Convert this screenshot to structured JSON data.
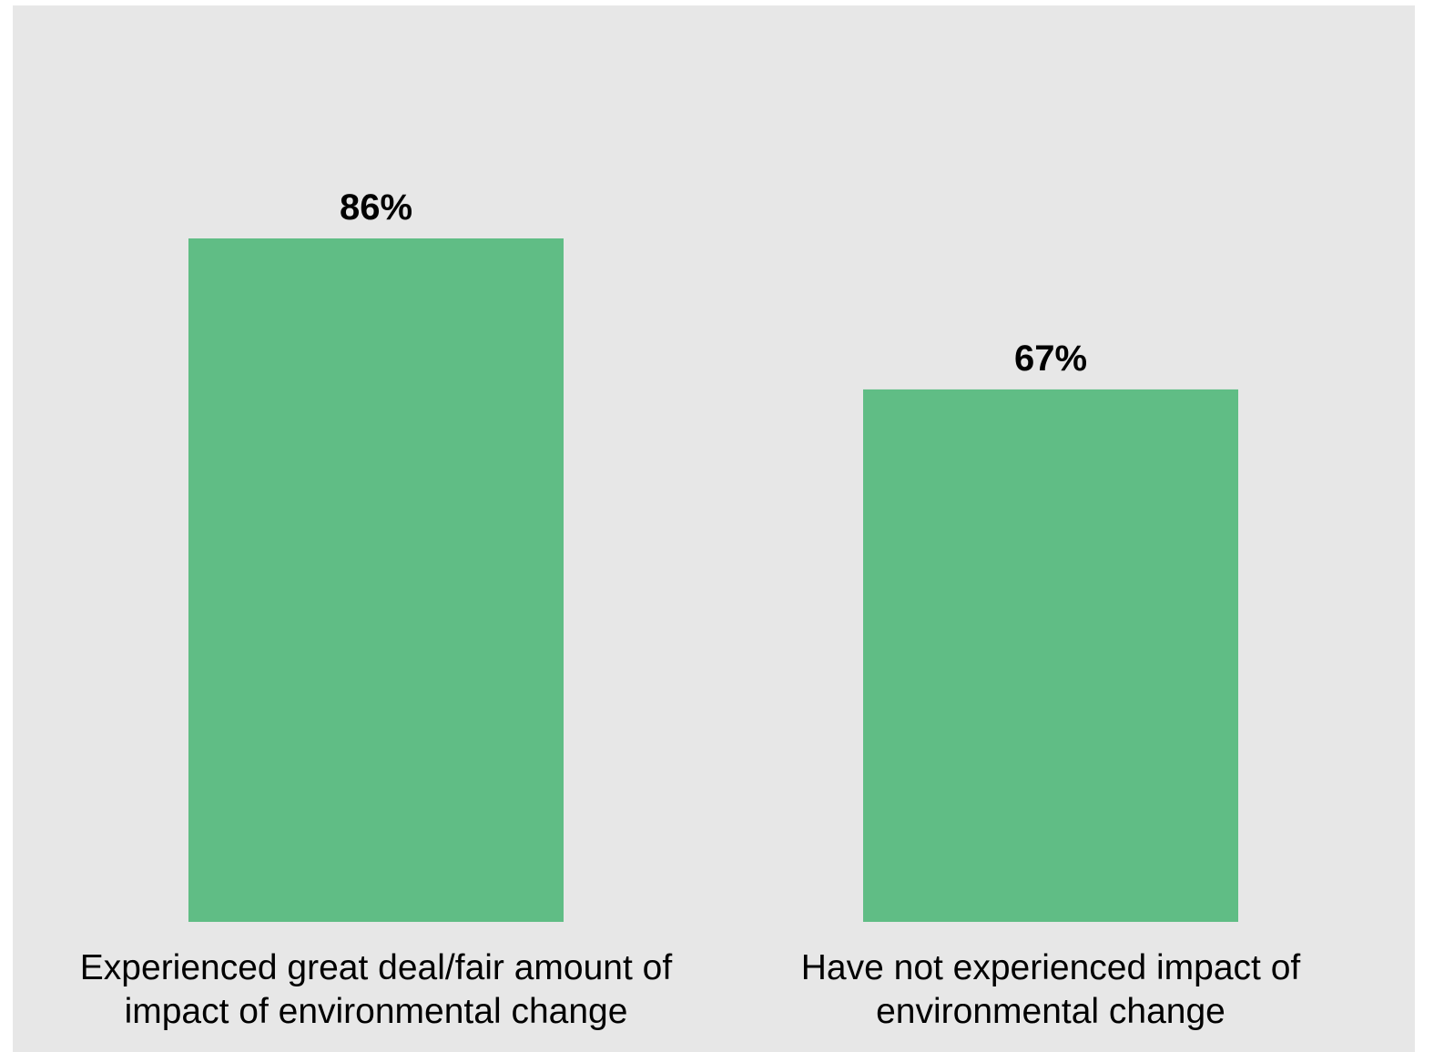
{
  "chart_data": {
    "type": "bar",
    "categories": [
      [
        "Experienced great deal/fair amount of",
        "impact of environmental change"
      ],
      [
        "Have not experienced impact of",
        "environmental change"
      ]
    ],
    "values": [
      86,
      67
    ],
    "value_labels": [
      "86%",
      "67%"
    ],
    "ylim": [
      0,
      100
    ],
    "grid": false,
    "legend": "none",
    "bar_color": "#60bd85",
    "background_color": "#e7e7e7"
  }
}
